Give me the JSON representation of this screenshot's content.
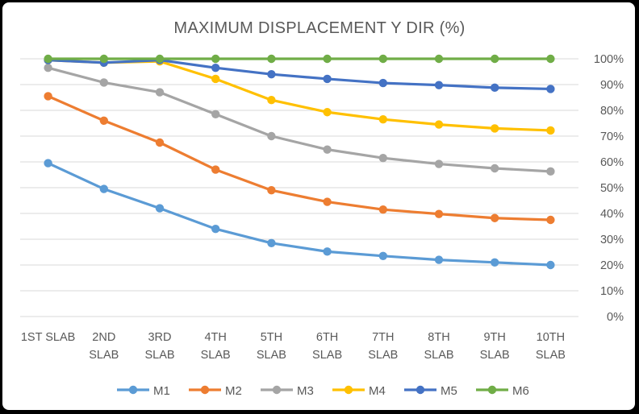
{
  "chart_data": {
    "type": "line",
    "title": "MAXIMUM DISPLACEMENT Y DIR (%)",
    "xlabel": "",
    "ylabel": "",
    "categories": [
      [
        "1ST SLAB"
      ],
      [
        "2ND",
        "SLAB"
      ],
      [
        "3RD",
        "SLAB"
      ],
      [
        "4TH",
        "SLAB"
      ],
      [
        "5TH",
        "SLAB"
      ],
      [
        "6TH",
        "SLAB"
      ],
      [
        "7TH",
        "SLAB"
      ],
      [
        "8TH",
        "SLAB"
      ],
      [
        "9TH",
        "SLAB"
      ],
      [
        "10TH",
        "SLAB"
      ]
    ],
    "y_ticks": [
      "0%",
      "10%",
      "20%",
      "30%",
      "40%",
      "50%",
      "60%",
      "70%",
      "80%",
      "90%",
      "100%"
    ],
    "ylim": [
      0,
      100
    ],
    "grid": true,
    "legend_position": "bottom",
    "series": [
      {
        "name": "M1",
        "color": "#5b9bd5",
        "values": [
          59.5,
          49.5,
          42,
          34,
          28.5,
          25.2,
          23.5,
          22,
          21,
          20
        ]
      },
      {
        "name": "M2",
        "color": "#ed7d31",
        "values": [
          85.5,
          76,
          67.5,
          57,
          49,
          44.5,
          41.5,
          39.8,
          38.2,
          37.5
        ]
      },
      {
        "name": "M3",
        "color": "#a5a5a5",
        "values": [
          96.5,
          90.8,
          87,
          78.5,
          70,
          64.8,
          61.5,
          59.2,
          57.5,
          56.3
        ]
      },
      {
        "name": "M4",
        "color": "#ffc000",
        "values": [
          99.5,
          98.5,
          99,
          92.2,
          84,
          79.3,
          76.5,
          74.5,
          73,
          72.2
        ]
      },
      {
        "name": "M5",
        "color": "#4472c4",
        "values": [
          99.5,
          98.5,
          99.5,
          96.5,
          94,
          92.2,
          90.6,
          89.8,
          88.8,
          88.3
        ]
      },
      {
        "name": "M6",
        "color": "#70ad47",
        "values": [
          100,
          100,
          100,
          100,
          100,
          100,
          100,
          100,
          100,
          100
        ]
      }
    ]
  }
}
